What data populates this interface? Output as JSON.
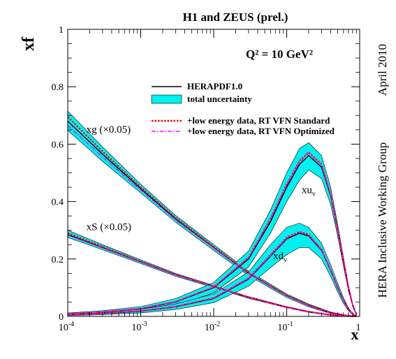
{
  "chart_data": {
    "type": "line",
    "title": "H1 and ZEUS (prel.)",
    "annotation": "Q² = 10 GeV²",
    "side_labels": [
      "April 2010",
      "HERA Inclusive Working Group"
    ],
    "xlabel": "x",
    "ylabel": "xf",
    "x_scale": "log",
    "xlim": [
      0.0001,
      1
    ],
    "ylim": [
      0,
      1
    ],
    "x_ticks": [
      {
        "value": 0.0001,
        "base": "10",
        "exp": "-4"
      },
      {
        "value": 0.001,
        "base": "10",
        "exp": "-3"
      },
      {
        "value": 0.01,
        "base": "10",
        "exp": "-2"
      },
      {
        "value": 0.1,
        "base": "10",
        "exp": "-1"
      },
      {
        "value": 1,
        "base": "1",
        "exp": ""
      }
    ],
    "y_ticks": [
      {
        "value": 0,
        "label": "0"
      },
      {
        "value": 0.2,
        "label": "0.2"
      },
      {
        "value": 0.4,
        "label": "0.4"
      },
      {
        "value": 0.6,
        "label": "0.6"
      },
      {
        "value": 0.8,
        "label": "0.8"
      },
      {
        "value": 1,
        "label": "1"
      }
    ],
    "legend": {
      "placement": "top-right",
      "entries": [
        {
          "label": "HERAPDF1.0",
          "style": "solid",
          "color": "#000000"
        },
        {
          "label": "total uncertainty",
          "style": "band",
          "color": "#00f0f0"
        },
        {
          "label": "+low energy data, RT VFN Standard",
          "style": "dotted",
          "color": "#ff0000"
        },
        {
          "label": "+low energy data, RT VFN Optimized",
          "style": "dashdot",
          "color": "#ff00ff"
        }
      ]
    },
    "colors": {
      "band": "#00f0f0",
      "central": "#000000",
      "standard": "#ff0000",
      "optimized": "#ff00ff"
    },
    "series": [
      {
        "label_text": "xg (×0.05)",
        "label_at": [
          0.00018,
          0.64
        ],
        "x": [
          0.0001,
          0.0003,
          0.001,
          0.003,
          0.01,
          0.03,
          0.1,
          0.2,
          0.4,
          0.7,
          0.9
        ],
        "central": [
          0.68,
          0.565,
          0.445,
          0.34,
          0.24,
          0.15,
          0.072,
          0.038,
          0.012,
          0.002,
          0.0002
        ],
        "upper": [
          0.715,
          0.59,
          0.46,
          0.352,
          0.25,
          0.158,
          0.078,
          0.043,
          0.015,
          0.003,
          0.0004
        ],
        "lower": [
          0.648,
          0.54,
          0.43,
          0.328,
          0.23,
          0.142,
          0.066,
          0.033,
          0.01,
          0.0015,
          0.0001
        ],
        "standard": [
          0.695,
          0.575,
          0.45,
          0.344,
          0.243,
          0.152,
          0.074,
          0.039,
          0.012,
          0.002,
          0.0002
        ],
        "optimized": [
          0.665,
          0.555,
          0.44,
          0.336,
          0.238,
          0.149,
          0.071,
          0.037,
          0.011,
          0.002,
          0.0002
        ]
      },
      {
        "label_text": "xS (×0.05)",
        "label_at": [
          0.00018,
          0.3
        ],
        "x": [
          0.0001,
          0.0003,
          0.001,
          0.003,
          0.01,
          0.03,
          0.1,
          0.2,
          0.4,
          0.7,
          0.9
        ],
        "central": [
          0.285,
          0.24,
          0.19,
          0.145,
          0.104,
          0.066,
          0.032,
          0.016,
          0.005,
          0.0008,
          0.0001
        ],
        "upper": [
          0.3,
          0.25,
          0.197,
          0.15,
          0.108,
          0.069,
          0.034,
          0.018,
          0.006,
          0.001,
          0.0002
        ],
        "lower": [
          0.275,
          0.232,
          0.184,
          0.14,
          0.1,
          0.063,
          0.03,
          0.014,
          0.004,
          0.0006,
          0.0001
        ],
        "standard": [
          0.29,
          0.243,
          0.192,
          0.146,
          0.105,
          0.067,
          0.032,
          0.016,
          0.005,
          0.0008,
          0.0001
        ],
        "optimized": [
          0.283,
          0.238,
          0.189,
          0.144,
          0.104,
          0.066,
          0.031,
          0.016,
          0.005,
          0.0008,
          0.0001
        ]
      },
      {
        "label_text": "xu",
        "label_sub": "v",
        "label_at": [
          0.16,
          0.43
        ],
        "x": [
          0.0001,
          0.0003,
          0.001,
          0.003,
          0.01,
          0.03,
          0.06,
          0.1,
          0.15,
          0.2,
          0.3,
          0.4,
          0.5,
          0.6,
          0.7,
          0.8,
          0.9
        ],
        "central": [
          0.008,
          0.014,
          0.026,
          0.05,
          0.1,
          0.2,
          0.33,
          0.45,
          0.53,
          0.56,
          0.52,
          0.42,
          0.3,
          0.19,
          0.1,
          0.04,
          0.007
        ],
        "upper": [
          0.012,
          0.02,
          0.034,
          0.062,
          0.118,
          0.228,
          0.37,
          0.5,
          0.585,
          0.605,
          0.56,
          0.45,
          0.32,
          0.205,
          0.11,
          0.045,
          0.009
        ],
        "lower": [
          0.004,
          0.008,
          0.018,
          0.038,
          0.082,
          0.172,
          0.29,
          0.4,
          0.475,
          0.51,
          0.48,
          0.39,
          0.28,
          0.175,
          0.09,
          0.035,
          0.005
        ],
        "standard": [
          0.008,
          0.015,
          0.027,
          0.051,
          0.102,
          0.205,
          0.34,
          0.46,
          0.542,
          0.572,
          0.53,
          0.425,
          0.303,
          0.192,
          0.101,
          0.04,
          0.007
        ],
        "optimized": [
          0.008,
          0.015,
          0.027,
          0.051,
          0.102,
          0.204,
          0.338,
          0.458,
          0.538,
          0.568,
          0.528,
          0.424,
          0.302,
          0.191,
          0.1,
          0.04,
          0.007
        ]
      },
      {
        "label_text": "xd",
        "label_sub": "v",
        "label_at": [
          0.065,
          0.2
        ],
        "x": [
          0.0001,
          0.0003,
          0.001,
          0.003,
          0.01,
          0.03,
          0.06,
          0.1,
          0.15,
          0.2,
          0.3,
          0.4,
          0.5,
          0.6,
          0.7,
          0.8,
          0.9
        ],
        "central": [
          0.006,
          0.01,
          0.018,
          0.033,
          0.062,
          0.13,
          0.21,
          0.27,
          0.29,
          0.28,
          0.23,
          0.16,
          0.1,
          0.055,
          0.025,
          0.008,
          0.001
        ],
        "upper": [
          0.009,
          0.015,
          0.025,
          0.043,
          0.078,
          0.155,
          0.25,
          0.31,
          0.325,
          0.31,
          0.255,
          0.18,
          0.115,
          0.065,
          0.03,
          0.01,
          0.002
        ],
        "lower": [
          0.003,
          0.006,
          0.012,
          0.024,
          0.048,
          0.105,
          0.17,
          0.215,
          0.24,
          0.24,
          0.2,
          0.14,
          0.085,
          0.045,
          0.02,
          0.006,
          0.0005
        ],
        "standard": [
          0.006,
          0.011,
          0.019,
          0.034,
          0.064,
          0.133,
          0.214,
          0.275,
          0.295,
          0.285,
          0.233,
          0.162,
          0.101,
          0.056,
          0.025,
          0.008,
          0.001
        ],
        "optimized": [
          0.006,
          0.011,
          0.019,
          0.034,
          0.064,
          0.132,
          0.212,
          0.273,
          0.293,
          0.283,
          0.232,
          0.161,
          0.1,
          0.055,
          0.025,
          0.008,
          0.001
        ]
      }
    ]
  }
}
